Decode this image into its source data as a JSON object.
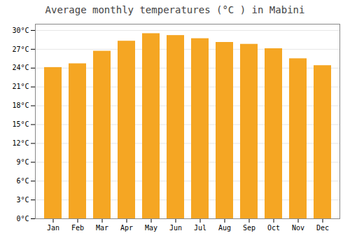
{
  "chart_data": {
    "type": "bar",
    "title": "Average monthly temperatures (°C ) in Mabini",
    "categories": [
      "Jan",
      "Feb",
      "Mar",
      "Apr",
      "May",
      "Jun",
      "Jul",
      "Aug",
      "Sep",
      "Oct",
      "Nov",
      "Dec"
    ],
    "values": [
      24.1,
      24.7,
      26.7,
      28.3,
      29.5,
      29.2,
      28.7,
      28.1,
      27.8,
      27.1,
      25.5,
      24.4
    ],
    "color": "#F5A623",
    "ylim": [
      0,
      31
    ],
    "yticks": [
      {
        "value": 0,
        "label": "0°C"
      },
      {
        "value": 3,
        "label": "3°C"
      },
      {
        "value": 6,
        "label": "6°C"
      },
      {
        "value": 9,
        "label": "9°C"
      },
      {
        "value": 12,
        "label": "12°C"
      },
      {
        "value": 15,
        "label": "15°C"
      },
      {
        "value": 18,
        "label": "18°C"
      },
      {
        "value": 21,
        "label": "21°C"
      },
      {
        "value": 24,
        "label": "24°C"
      },
      {
        "value": 27,
        "label": "27°C"
      },
      {
        "value": 30,
        "label": "30°C"
      }
    ],
    "grid": true
  }
}
